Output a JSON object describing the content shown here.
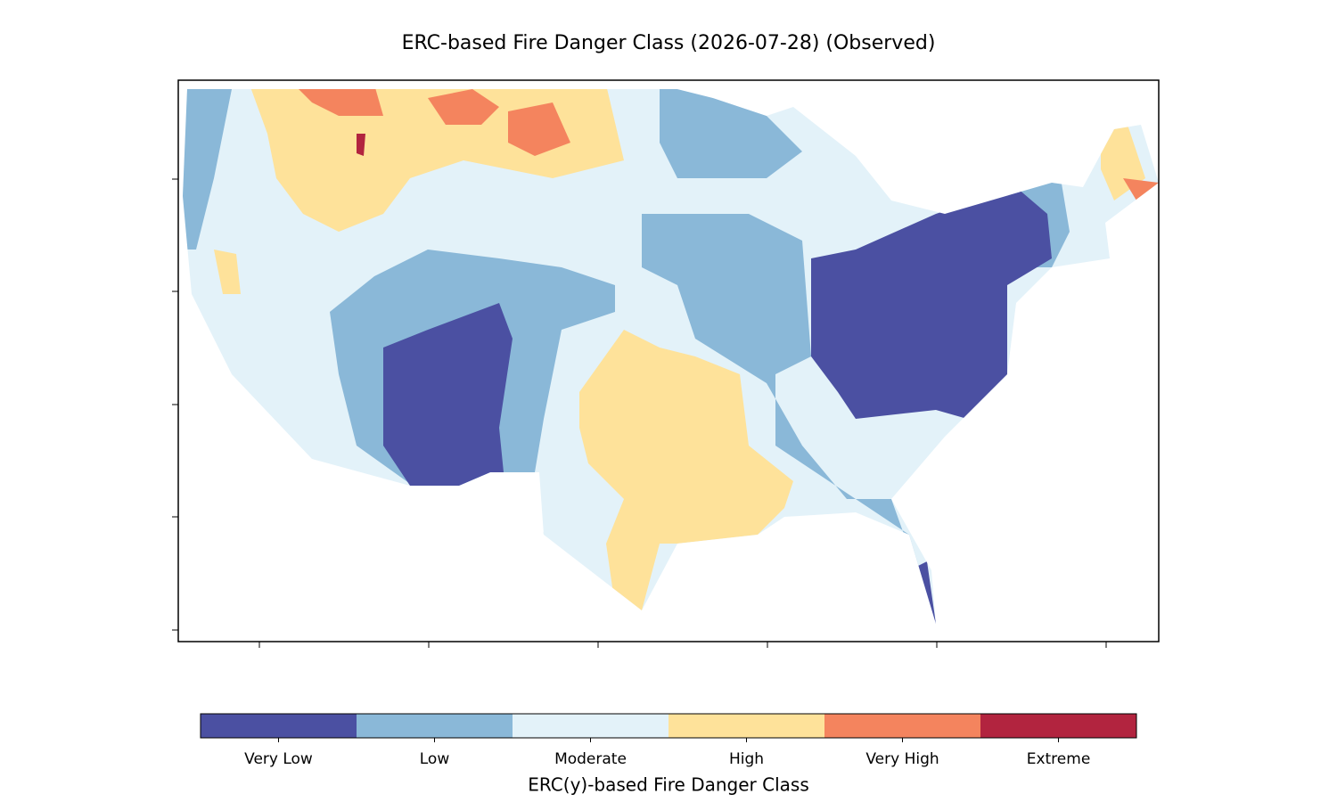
{
  "title": "ERC-based Fire Danger Class (2026-07-28) (Observed)",
  "colorbar": {
    "label": "ERC(y)-based Fire Danger Class",
    "classes": [
      {
        "name": "Very Low",
        "color": "#4b50a2"
      },
      {
        "name": "Low",
        "color": "#8ab8d8"
      },
      {
        "name": "Moderate",
        "color": "#e3f2f9"
      },
      {
        "name": "High",
        "color": "#fee29a"
      },
      {
        "name": "Very High",
        "color": "#f4845e"
      },
      {
        "name": "Extreme",
        "color": "#b2243f"
      }
    ]
  }
}
